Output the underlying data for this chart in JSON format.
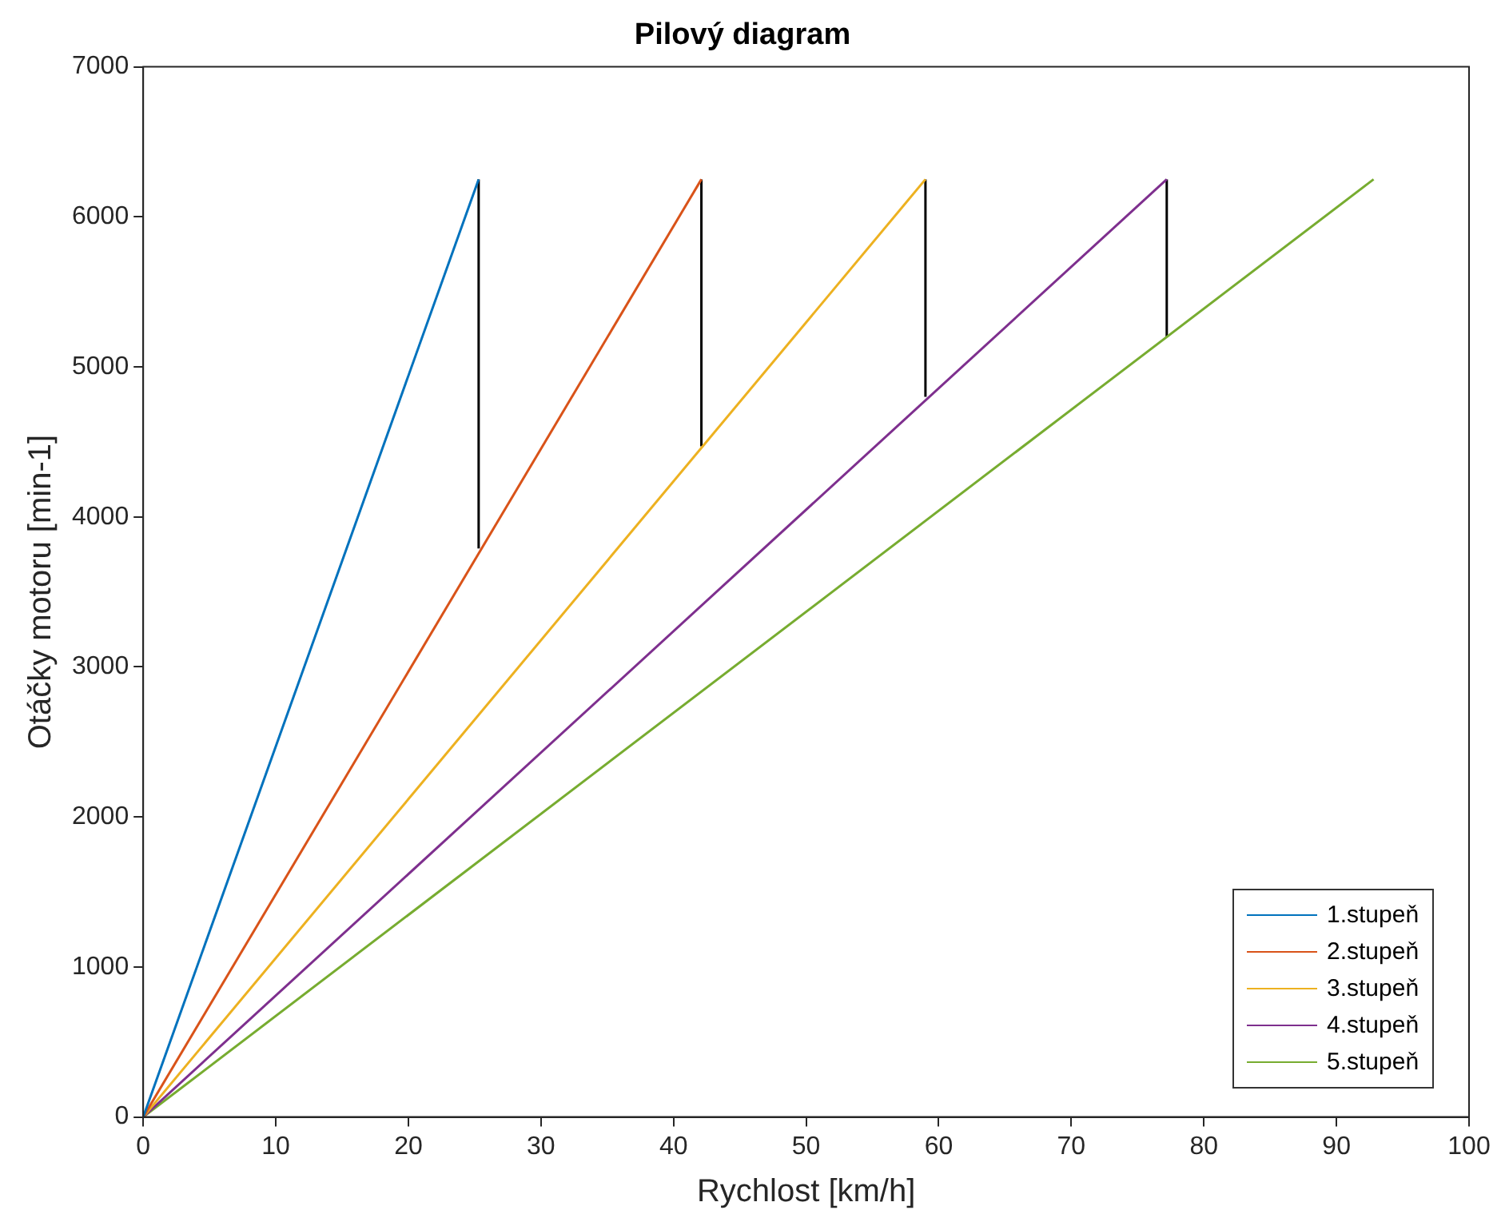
{
  "chart_data": {
    "type": "line",
    "title": "Pilový diagram",
    "xlabel": "Rychlost [km/h]",
    "ylabel": "Otáčky motoru [min-1]",
    "xlim": [
      0,
      100
    ],
    "xticks": [
      0,
      10,
      20,
      30,
      40,
      50,
      60,
      70,
      80,
      90,
      100
    ],
    "ylim": [
      0,
      7000
    ],
    "yticks": [
      0,
      1000,
      2000,
      3000,
      4000,
      5000,
      6000,
      7000
    ],
    "grid": false,
    "legend": "bottom right",
    "marker": "none",
    "line_style": "solid",
    "series": [
      {
        "name": "1.stupeň",
        "color": "#0072bd",
        "x": [
          0,
          25.3
        ],
        "values": [
          0,
          6250
        ]
      },
      {
        "name": "2.stupeň",
        "color": "#d95319",
        "x": [
          0,
          42.1
        ],
        "values": [
          0,
          6250
        ]
      },
      {
        "name": "3.stupeň",
        "color": "#edb120",
        "x": [
          0,
          59.0
        ],
        "values": [
          0,
          6250
        ]
      },
      {
        "name": "4.stupeň",
        "color": "#7e2f8e",
        "x": [
          0,
          77.2
        ],
        "values": [
          0,
          6250
        ]
      },
      {
        "name": "5.stupeň",
        "color": "#77ac30",
        "x": [
          0,
          92.8
        ],
        "values": [
          0,
          6250
        ]
      },
      {
        "color": "#000000",
        "x": [
          25.3,
          25.3
        ],
        "values": [
          3790,
          6250
        ]
      },
      {
        "color": "#000000",
        "x": [
          42.1,
          42.1
        ],
        "values": [
          4470,
          6250
        ]
      },
      {
        "color": "#000000",
        "x": [
          59.0,
          59.0
        ],
        "values": [
          4800,
          6250
        ]
      },
      {
        "color": "#000000",
        "x": [
          77.2,
          77.2
        ],
        "values": [
          5200,
          6250
        ]
      }
    ]
  }
}
